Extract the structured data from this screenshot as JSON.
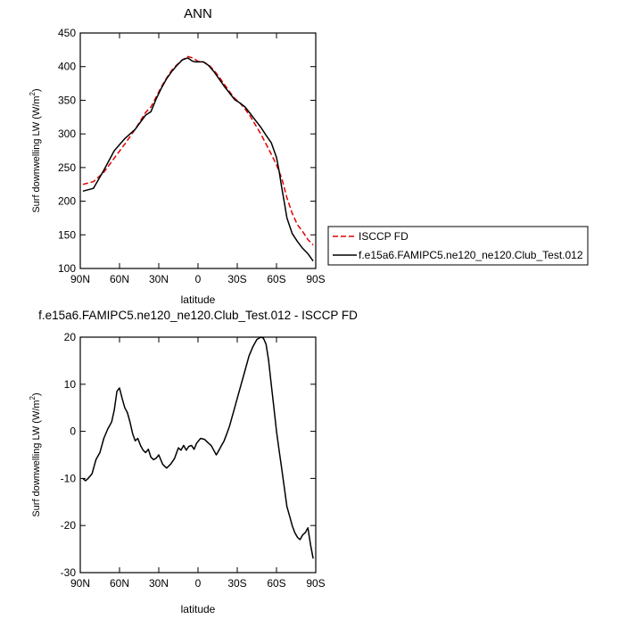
{
  "chart_data": [
    {
      "type": "line",
      "title": "ANN",
      "xlabel": "latitude",
      "ylabel": "Surf downwelling LW (W/m²)",
      "ylabel_parts": {
        "main": "Surf downwelling LW (W/m",
        "sup": "2",
        "close": ")"
      },
      "x_axis_note": "x runs from 90N (left) to 90S (right); values below are latitude in degrees, north positive",
      "xlim": [
        90,
        -90
      ],
      "ylim": [
        100,
        450
      ],
      "xticks": [
        {
          "value": 90,
          "label": "90N"
        },
        {
          "value": 60,
          "label": "60N"
        },
        {
          "value": 30,
          "label": "30N"
        },
        {
          "value": 0,
          "label": "0"
        },
        {
          "value": -30,
          "label": "30S"
        },
        {
          "value": -60,
          "label": "60S"
        },
        {
          "value": -90,
          "label": "90S"
        }
      ],
      "yticks": [
        100,
        150,
        200,
        250,
        300,
        350,
        400,
        450
      ],
      "grid": false,
      "legend": "right, outside plot area",
      "series": [
        {
          "name": "ISCCP FD",
          "color": "#e00000",
          "dash": "dashed",
          "x": [
            88,
            80,
            72,
            64,
            56,
            48,
            40,
            36,
            32,
            28,
            24,
            20,
            16,
            12,
            8,
            4,
            0,
            -4,
            -8,
            -12,
            -16,
            -20,
            -24,
            -28,
            -32,
            -36,
            -40,
            -44,
            -48,
            -52,
            -56,
            -60,
            -64,
            -68,
            -72,
            -76,
            -80,
            -84,
            -88
          ],
          "y": [
            225,
            229,
            243,
            264,
            285,
            307,
            332,
            340,
            355,
            370,
            383,
            395,
            403,
            410,
            415,
            413,
            408,
            407,
            403,
            395,
            385,
            374,
            363,
            353,
            346,
            337,
            326,
            313,
            300,
            285,
            270,
            254,
            234,
            205,
            182,
            165,
            155,
            143,
            135
          ]
        },
        {
          "name": "f.e15a6.FAMIPC5.ne120_ne120.Club_Test.012",
          "color": "#000000",
          "dash": "solid",
          "x": [
            88,
            80,
            72,
            64,
            56,
            48,
            40,
            36,
            32,
            28,
            24,
            20,
            16,
            12,
            8,
            4,
            2,
            0,
            -4,
            -8,
            -12,
            -16,
            -20,
            -24,
            -28,
            -32,
            -36,
            -40,
            -44,
            -48,
            -52,
            -56,
            -60,
            -62,
            -64,
            -66,
            -68,
            -72,
            -76,
            -80,
            -84,
            -88
          ],
          "y": [
            215,
            219,
            246,
            275,
            293,
            307,
            328,
            333,
            352,
            368,
            382,
            393,
            402,
            410,
            413,
            408,
            407,
            407,
            407,
            402,
            393,
            382,
            371,
            361,
            351,
            346,
            340,
            330,
            320,
            310,
            298,
            287,
            265,
            245,
            220,
            198,
            175,
            152,
            140,
            130,
            122,
            111
          ]
        }
      ]
    },
    {
      "type": "line",
      "title": "f.e15a6.FAMIPC5.ne120_ne120.Club_Test.012 - ISCCP FD",
      "xlabel": "latitude",
      "ylabel": "Surf downwelling LW (W/m²)",
      "ylabel_parts": {
        "main": "Surf downwelling LW (W/m",
        "sup": "2",
        "close": ")"
      },
      "xlim": [
        90,
        -90
      ],
      "ylim": [
        -30,
        20
      ],
      "xticks": [
        {
          "value": 90,
          "label": "90N"
        },
        {
          "value": 60,
          "label": "60N"
        },
        {
          "value": 30,
          "label": "30N"
        },
        {
          "value": 0,
          "label": "0"
        },
        {
          "value": -30,
          "label": "30S"
        },
        {
          "value": -60,
          "label": "60S"
        },
        {
          "value": -90,
          "label": "90S"
        }
      ],
      "yticks": [
        -30,
        -20,
        -10,
        0,
        10,
        20
      ],
      "grid": false,
      "series": [
        {
          "color": "#000000",
          "dash": "solid",
          "x": [
            88,
            86,
            84,
            81,
            78,
            75,
            72,
            69,
            66,
            64,
            62,
            60,
            58,
            56,
            54,
            52,
            50,
            48,
            46,
            44,
            42,
            40,
            38,
            36,
            34,
            32,
            30,
            27,
            24,
            21,
            18,
            15,
            13,
            11,
            9,
            7,
            5,
            3,
            1,
            -2,
            -5,
            -8,
            -10,
            -12,
            -14,
            -16,
            -18,
            -20,
            -22,
            -24,
            -26,
            -28,
            -30,
            -33,
            -36,
            -39,
            -42,
            -45,
            -48,
            -50,
            -52,
            -54,
            -56,
            -58,
            -60,
            -62,
            -64,
            -66,
            -68,
            -70,
            -72,
            -74,
            -76,
            -78,
            -80,
            -82,
            -84,
            -86,
            -88
          ],
          "y": [
            -10,
            -10.5,
            -10,
            -9,
            -6,
            -4.5,
            -1.5,
            0.5,
            2,
            4.5,
            8.5,
            9.2,
            7,
            5,
            4,
            2,
            -0.5,
            -2,
            -1.5,
            -3,
            -4,
            -4.5,
            -3.8,
            -5.5,
            -6,
            -5.7,
            -5,
            -7,
            -7.8,
            -7,
            -5.8,
            -3.5,
            -4,
            -3,
            -4,
            -3.2,
            -3,
            -3.8,
            -2.5,
            -1.5,
            -1.7,
            -2.5,
            -3,
            -4,
            -5,
            -4,
            -3,
            -2,
            -0.5,
            1,
            3,
            5,
            7,
            10,
            13,
            16,
            18,
            19.5,
            20,
            19.8,
            18.5,
            15,
            10,
            5,
            0,
            -4,
            -8,
            -12,
            -16,
            -18,
            -20,
            -21.5,
            -22.5,
            -23,
            -22,
            -21.5,
            -20.5,
            -24,
            -27
          ]
        }
      ]
    }
  ]
}
